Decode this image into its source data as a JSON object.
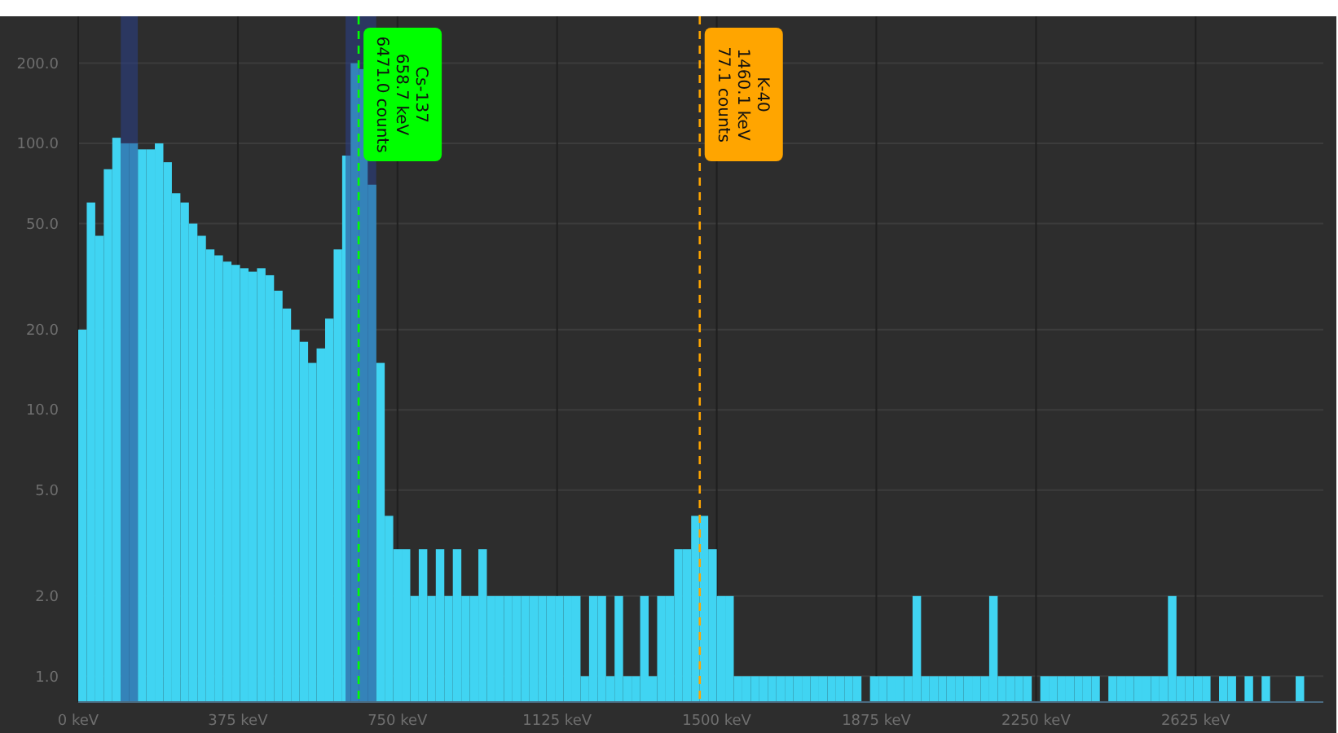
{
  "chart_data": {
    "type": "histogram",
    "bins": [
      0,
      20,
      40,
      60,
      80,
      100,
      120,
      140,
      160,
      180,
      200,
      220,
      240,
      260,
      280,
      300,
      320,
      340,
      360,
      380,
      400,
      420,
      440,
      460,
      480,
      500,
      520,
      540,
      560,
      580,
      600,
      620,
      640,
      660,
      680,
      700,
      720,
      740,
      760,
      780,
      800,
      820,
      840,
      860,
      880,
      900,
      920,
      940,
      960,
      980,
      1000,
      1020,
      1040,
      1060,
      1080,
      1100,
      1120,
      1140,
      1160,
      1180,
      1200,
      1220,
      1240,
      1260,
      1280,
      1300,
      1320,
      1340,
      1360,
      1380,
      1400,
      1420,
      1440,
      1460,
      1480,
      1500,
      1520,
      1540,
      1560,
      1580,
      1600,
      1620,
      1640,
      1660,
      1680,
      1700,
      1720,
      1740,
      1760,
      1780,
      1800,
      1820,
      1840,
      1860,
      1880,
      1900,
      1920,
      1940,
      1960,
      1980,
      2000,
      2020,
      2040,
      2060,
      2080,
      2100,
      2120,
      2140,
      2160,
      2180,
      2200,
      2220,
      2240,
      2260,
      2280,
      2300,
      2320,
      2340,
      2360,
      2380,
      2400,
      2420,
      2440,
      2460,
      2480,
      2500,
      2520,
      2540,
      2560,
      2580,
      2600,
      2620,
      2640,
      2660,
      2680,
      2700,
      2720,
      2740,
      2760,
      2780,
      2800,
      2820,
      2840,
      2860,
      2880,
      2900,
      2920
    ],
    "values": [
      20,
      60,
      45,
      80,
      105,
      100,
      100,
      95,
      95,
      100,
      85,
      65,
      60,
      50,
      45,
      40,
      38,
      36,
      35,
      34,
      33,
      34,
      32,
      28,
      24,
      20,
      18,
      15,
      17,
      22,
      40,
      90,
      200,
      190,
      70,
      15,
      4,
      3,
      3,
      2,
      3,
      2,
      3,
      2,
      3,
      2,
      2,
      3,
      2,
      2,
      2,
      2,
      2,
      2,
      2,
      2,
      2,
      2,
      2,
      1,
      2,
      2,
      1,
      2,
      1,
      1,
      2,
      1,
      2,
      2,
      3,
      3,
      4,
      4,
      3,
      2,
      2,
      1,
      1,
      1,
      1,
      1,
      1,
      1,
      1,
      1,
      1,
      1,
      1,
      1,
      1,
      1,
      null,
      1,
      1,
      1,
      1,
      1,
      2,
      1,
      1,
      1,
      1,
      1,
      1,
      1,
      1,
      2,
      1,
      1,
      1,
      1,
      null,
      1,
      1,
      1,
      1,
      1,
      1,
      1,
      null,
      1,
      1,
      1,
      1,
      1,
      1,
      1,
      2,
      1,
      1,
      1,
      1,
      null,
      1,
      1,
      null,
      1,
      null,
      1,
      null,
      null,
      null,
      1,
      null,
      null
    ],
    "color": "#40d4f2",
    "log": "y",
    "xlim": [
      0,
      2925
    ],
    "xticks": [
      {
        "value": 0,
        "label": "0 keV"
      },
      {
        "value": 375,
        "label": "375 keV"
      },
      {
        "value": 750,
        "label": "750 keV"
      },
      {
        "value": 1125,
        "label": "1125 keV"
      },
      {
        "value": 1500,
        "label": "1500 keV"
      },
      {
        "value": 1875,
        "label": "1875 keV"
      },
      {
        "value": 2250,
        "label": "2250 keV"
      },
      {
        "value": 2625,
        "label": "2625 keV"
      }
    ],
    "ylim": [
      0.8,
      300
    ],
    "yticks": [
      {
        "value": 1,
        "label": "1.0"
      },
      {
        "value": 2,
        "label": "2.0"
      },
      {
        "value": 5,
        "label": "5.0"
      },
      {
        "value": 10,
        "label": "10.0"
      },
      {
        "value": 20,
        "label": "20.0"
      },
      {
        "value": 50,
        "label": "50.0"
      },
      {
        "value": 100,
        "label": "100.0"
      },
      {
        "value": 200,
        "label": "200.0"
      }
    ],
    "grid": true,
    "bands": [
      {
        "axis": "x",
        "from": 100,
        "to": 140,
        "color": "#2a3f8a"
      },
      {
        "axis": "x",
        "from": 628,
        "to": 700,
        "color": "#2a3f8a"
      }
    ],
    "ref_lines": [
      {
        "axis": "x",
        "value": 658.7,
        "label": "Cs-137\n658.7 keV\n6471.0 counts",
        "color": "#00ff00",
        "line_style": "dashed"
      },
      {
        "axis": "x",
        "value": 1460.1,
        "label": "K-40\n1460.1 keV\n77.1 counts",
        "color": "#ffa500",
        "line_style": "dashed"
      }
    ]
  }
}
